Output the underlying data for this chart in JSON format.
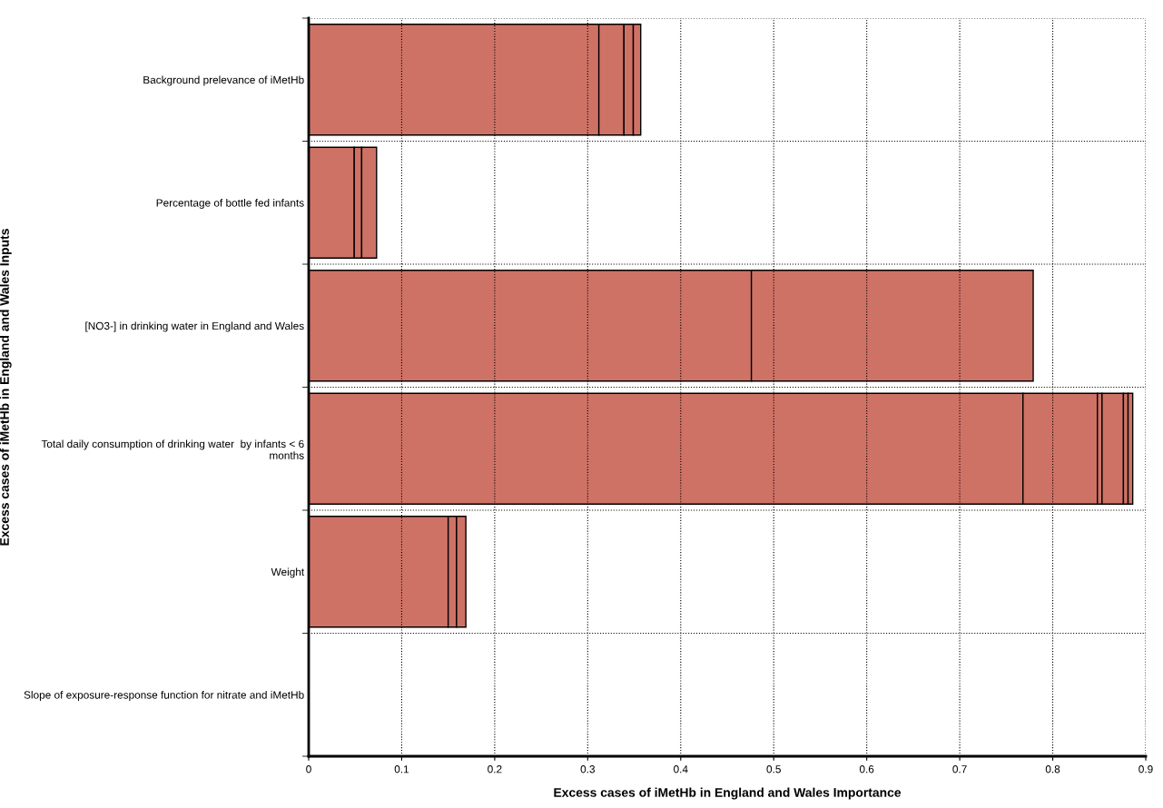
{
  "chart_data": {
    "type": "bar",
    "orientation": "horizontal",
    "stacked": true,
    "xlabel": "Excess cases of iMetHb in England and Wales Importance",
    "ylabel": "Excess cases of iMetHb in England and Wales Inputs",
    "categories": [
      "Background prelevance of iMetHb",
      "Percentage of bottle fed infants",
      "[NO3-] in drinking water in England and Wales",
      "Total daily consumption of drinking water  by infants < 6 months",
      "Weight",
      "Slope of exposure-response function for nitrate and iMetHb"
    ],
    "series": [
      {
        "color": "#cf7266",
        "values": [
          0.312,
          0.049,
          0.476,
          0.768,
          0.15,
          0
        ]
      },
      {
        "color": "#cf7266",
        "values": [
          0.027,
          0.008,
          0.303,
          0.08,
          0.009,
          null
        ]
      },
      {
        "color": "#cf7266",
        "values": [
          0.01,
          0.016,
          null,
          0.005,
          0.01,
          null
        ]
      },
      {
        "color": "#cf7266",
        "values": [
          0.008,
          null,
          null,
          0.023,
          null,
          null
        ]
      },
      {
        "color": "#cf7266",
        "values": [
          null,
          null,
          null,
          0.005,
          null,
          null
        ]
      },
      {
        "color": "#cf7266",
        "values": [
          null,
          null,
          null,
          0.005,
          null,
          null
        ]
      }
    ],
    "xlim": [
      0,
      0.9
    ],
    "xticks": [
      0,
      0.1,
      0.2,
      0.3,
      0.4,
      0.5,
      0.6,
      0.7,
      0.8,
      0.9
    ],
    "grid": true
  }
}
